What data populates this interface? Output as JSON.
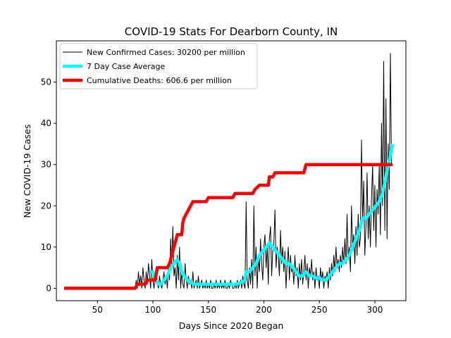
{
  "chart_data": {
    "type": "line",
    "title": "COVID-19 Stats For Dearborn County, IN",
    "xlabel": "Days Since 2020 Began",
    "ylabel": "New COVID-19 Cases",
    "xlim": [
      13,
      328
    ],
    "ylim": [
      -3,
      60
    ],
    "xticks": [
      50,
      100,
      150,
      200,
      250,
      300
    ],
    "yticks": [
      0,
      10,
      20,
      30,
      40,
      50
    ],
    "legend_position": "top-left",
    "grid": false,
    "series": [
      {
        "name": "New Confirmed Cases: 30200 per million",
        "color": "#000000",
        "width": 1,
        "points": [
          [
            20,
            0
          ],
          [
            84,
            0
          ],
          [
            85,
            2
          ],
          [
            86,
            0
          ],
          [
            87,
            4
          ],
          [
            88,
            1
          ],
          [
            89,
            3
          ],
          [
            90,
            0
          ],
          [
            91,
            5
          ],
          [
            92,
            2
          ],
          [
            93,
            0
          ],
          [
            94,
            4
          ],
          [
            95,
            1
          ],
          [
            96,
            6
          ],
          [
            97,
            3
          ],
          [
            98,
            0
          ],
          [
            99,
            7
          ],
          [
            100,
            2
          ],
          [
            101,
            0
          ],
          [
            102,
            3
          ],
          [
            103,
            5
          ],
          [
            104,
            1
          ],
          [
            105,
            0
          ],
          [
            106,
            3
          ],
          [
            107,
            1
          ],
          [
            108,
            0
          ],
          [
            109,
            2
          ],
          [
            110,
            4
          ],
          [
            111,
            1
          ],
          [
            112,
            3
          ],
          [
            113,
            0
          ],
          [
            114,
            5
          ],
          [
            115,
            2
          ],
          [
            116,
            12
          ],
          [
            117,
            6
          ],
          [
            118,
            15
          ],
          [
            119,
            3
          ],
          [
            120,
            5
          ],
          [
            121,
            0
          ],
          [
            122,
            8
          ],
          [
            123,
            2
          ],
          [
            124,
            10
          ],
          [
            125,
            0
          ],
          [
            126,
            4
          ],
          [
            127,
            1
          ],
          [
            128,
            0
          ],
          [
            129,
            6
          ],
          [
            130,
            2
          ],
          [
            131,
            0
          ],
          [
            132,
            3
          ],
          [
            133,
            1
          ],
          [
            134,
            2
          ],
          [
            135,
            0
          ],
          [
            136,
            4
          ],
          [
            137,
            0
          ],
          [
            138,
            1
          ],
          [
            139,
            2
          ],
          [
            140,
            0
          ],
          [
            141,
            3
          ],
          [
            142,
            0
          ],
          [
            143,
            1
          ],
          [
            144,
            2
          ],
          [
            145,
            0
          ],
          [
            146,
            1
          ],
          [
            147,
            0
          ],
          [
            148,
            2
          ],
          [
            149,
            0
          ],
          [
            150,
            1
          ],
          [
            151,
            0
          ],
          [
            152,
            2
          ],
          [
            153,
            0
          ],
          [
            154,
            0
          ],
          [
            155,
            1
          ],
          [
            156,
            0
          ],
          [
            157,
            2
          ],
          [
            158,
            0
          ],
          [
            159,
            1
          ],
          [
            160,
            0
          ],
          [
            161,
            2
          ],
          [
            162,
            0
          ],
          [
            163,
            1
          ],
          [
            164,
            0
          ],
          [
            165,
            2
          ],
          [
            166,
            0
          ],
          [
            167,
            0
          ],
          [
            168,
            1
          ],
          [
            169,
            0
          ],
          [
            170,
            2
          ],
          [
            171,
            1
          ],
          [
            172,
            0
          ],
          [
            173,
            0
          ],
          [
            174,
            1
          ],
          [
            175,
            0
          ],
          [
            176,
            2
          ],
          [
            177,
            0
          ],
          [
            178,
            1
          ],
          [
            179,
            2
          ],
          [
            180,
            0
          ],
          [
            181,
            3
          ],
          [
            182,
            1
          ],
          [
            183,
            0
          ],
          [
            184,
            21
          ],
          [
            185,
            2
          ],
          [
            186,
            0
          ],
          [
            187,
            5
          ],
          [
            188,
            1
          ],
          [
            189,
            7
          ],
          [
            190,
            0
          ],
          [
            191,
            20
          ],
          [
            192,
            3
          ],
          [
            193,
            10
          ],
          [
            194,
            0
          ],
          [
            195,
            8
          ],
          [
            196,
            4
          ],
          [
            197,
            12
          ],
          [
            198,
            6
          ],
          [
            199,
            2
          ],
          [
            200,
            10
          ],
          [
            201,
            13
          ],
          [
            202,
            5
          ],
          [
            203,
            10
          ],
          [
            204,
            1
          ],
          [
            205,
            12
          ],
          [
            206,
            15
          ],
          [
            207,
            3
          ],
          [
            208,
            9
          ],
          [
            209,
            11
          ],
          [
            210,
            19
          ],
          [
            211,
            5
          ],
          [
            212,
            10
          ],
          [
            213,
            8
          ],
          [
            214,
            3
          ],
          [
            215,
            14
          ],
          [
            216,
            6
          ],
          [
            217,
            10
          ],
          [
            218,
            4
          ],
          [
            219,
            9
          ],
          [
            220,
            0
          ],
          [
            221,
            6
          ],
          [
            222,
            10
          ],
          [
            223,
            2
          ],
          [
            224,
            8
          ],
          [
            225,
            4
          ],
          [
            226,
            5
          ],
          [
            227,
            1
          ],
          [
            228,
            8
          ],
          [
            229,
            3
          ],
          [
            230,
            5
          ],
          [
            231,
            0
          ],
          [
            232,
            6
          ],
          [
            233,
            2
          ],
          [
            234,
            7
          ],
          [
            235,
            1
          ],
          [
            236,
            4
          ],
          [
            237,
            8
          ],
          [
            238,
            2
          ],
          [
            239,
            6
          ],
          [
            240,
            0
          ],
          [
            241,
            5
          ],
          [
            242,
            3
          ],
          [
            243,
            7
          ],
          [
            244,
            2
          ],
          [
            245,
            4
          ],
          [
            246,
            0
          ],
          [
            247,
            5
          ],
          [
            248,
            2
          ],
          [
            249,
            3
          ],
          [
            250,
            0
          ],
          [
            251,
            5
          ],
          [
            252,
            2
          ],
          [
            253,
            4
          ],
          [
            254,
            0
          ],
          [
            255,
            3
          ],
          [
            256,
            2
          ],
          [
            257,
            4
          ],
          [
            258,
            0
          ],
          [
            259,
            5
          ],
          [
            260,
            2
          ],
          [
            261,
            6
          ],
          [
            262,
            3
          ],
          [
            263,
            8
          ],
          [
            264,
            4
          ],
          [
            265,
            10
          ],
          [
            266,
            5
          ],
          [
            267,
            7
          ],
          [
            268,
            4
          ],
          [
            269,
            8
          ],
          [
            270,
            5
          ],
          [
            271,
            10
          ],
          [
            272,
            6
          ],
          [
            273,
            12
          ],
          [
            274,
            6
          ],
          [
            275,
            18
          ],
          [
            276,
            7
          ],
          [
            277,
            10
          ],
          [
            278,
            4
          ],
          [
            279,
            20
          ],
          [
            280,
            10
          ],
          [
            281,
            13
          ],
          [
            282,
            6
          ],
          [
            283,
            15
          ],
          [
            284,
            8
          ],
          [
            285,
            18
          ],
          [
            286,
            10
          ],
          [
            287,
            12
          ],
          [
            288,
            36
          ],
          [
            289,
            16
          ],
          [
            290,
            26
          ],
          [
            291,
            8
          ],
          [
            292,
            15
          ],
          [
            293,
            28
          ],
          [
            294,
            12
          ],
          [
            295,
            20
          ],
          [
            296,
            10
          ],
          [
            297,
            22
          ],
          [
            298,
            30
          ],
          [
            299,
            14
          ],
          [
            300,
            25
          ],
          [
            301,
            10
          ],
          [
            302,
            24
          ],
          [
            303,
            18
          ],
          [
            304,
            30
          ],
          [
            305,
            13
          ],
          [
            306,
            40
          ],
          [
            307,
            20
          ],
          [
            308,
            55
          ],
          [
            309,
            14
          ],
          [
            310,
            46
          ],
          [
            311,
            12
          ],
          [
            312,
            35
          ],
          [
            313,
            24
          ],
          [
            314,
            57
          ],
          [
            315,
            30
          ]
        ]
      },
      {
        "name": "7 Day Case Average",
        "color": "#00ffff",
        "width": 4.5,
        "points": [
          [
            97,
            4
          ],
          [
            100,
            4
          ],
          [
            102,
            2
          ],
          [
            105,
            1
          ],
          [
            107,
            1
          ],
          [
            110,
            2
          ],
          [
            113,
            3
          ],
          [
            116,
            5
          ],
          [
            119,
            6
          ],
          [
            122,
            7
          ],
          [
            124,
            6
          ],
          [
            126,
            4
          ],
          [
            128,
            3
          ],
          [
            131,
            2
          ],
          [
            134,
            1.5
          ],
          [
            137,
            1
          ],
          [
            140,
            1
          ],
          [
            145,
            1
          ],
          [
            150,
            1
          ],
          [
            155,
            1
          ],
          [
            160,
            1
          ],
          [
            165,
            1
          ],
          [
            170,
            1
          ],
          [
            175,
            1
          ],
          [
            180,
            1.5
          ],
          [
            183,
            2
          ],
          [
            184,
            4
          ],
          [
            187,
            4
          ],
          [
            190,
            5
          ],
          [
            193,
            6
          ],
          [
            196,
            8
          ],
          [
            199,
            9
          ],
          [
            202,
            10
          ],
          [
            205,
            11
          ],
          [
            208,
            10
          ],
          [
            211,
            9
          ],
          [
            214,
            8
          ],
          [
            217,
            7
          ],
          [
            220,
            6
          ],
          [
            223,
            6
          ],
          [
            226,
            5
          ],
          [
            229,
            4
          ],
          [
            232,
            3
          ],
          [
            235,
            3
          ],
          [
            238,
            4
          ],
          [
            241,
            3
          ],
          [
            244,
            3
          ],
          [
            247,
            2.5
          ],
          [
            250,
            2.5
          ],
          [
            253,
            2
          ],
          [
            256,
            2
          ],
          [
            259,
            3
          ],
          [
            262,
            4
          ],
          [
            265,
            5
          ],
          [
            268,
            6
          ],
          [
            271,
            6
          ],
          [
            274,
            7
          ],
          [
            277,
            8
          ],
          [
            280,
            10
          ],
          [
            283,
            12
          ],
          [
            286,
            14
          ],
          [
            289,
            17
          ],
          [
            292,
            17
          ],
          [
            295,
            18
          ],
          [
            298,
            19
          ],
          [
            301,
            20
          ],
          [
            304,
            21
          ],
          [
            307,
            23
          ],
          [
            310,
            27
          ],
          [
            313,
            31
          ],
          [
            316,
            35
          ]
        ]
      },
      {
        "name": "Cumulative Deaths: 606.6 per million",
        "color": "#ff0000",
        "width": 4.5,
        "points": [
          [
            20,
            0
          ],
          [
            84,
            0
          ],
          [
            86,
            1
          ],
          [
            93,
            1
          ],
          [
            95,
            2
          ],
          [
            102,
            2
          ],
          [
            104,
            5
          ],
          [
            113,
            5
          ],
          [
            115,
            6
          ],
          [
            116,
            7
          ],
          [
            118,
            9
          ],
          [
            120,
            11
          ],
          [
            122,
            13
          ],
          [
            126,
            13
          ],
          [
            127,
            16
          ],
          [
            128,
            17
          ],
          [
            130,
            18
          ],
          [
            132,
            19
          ],
          [
            134,
            20
          ],
          [
            136,
            21
          ],
          [
            148,
            21
          ],
          [
            150,
            22
          ],
          [
            172,
            22
          ],
          [
            174,
            23
          ],
          [
            190,
            23
          ],
          [
            192,
            24
          ],
          [
            196,
            25
          ],
          [
            204,
            25
          ],
          [
            205,
            27
          ],
          [
            208,
            27
          ],
          [
            210,
            28
          ],
          [
            236,
            28
          ],
          [
            238,
            30
          ],
          [
            316,
            30
          ]
        ]
      }
    ]
  }
}
